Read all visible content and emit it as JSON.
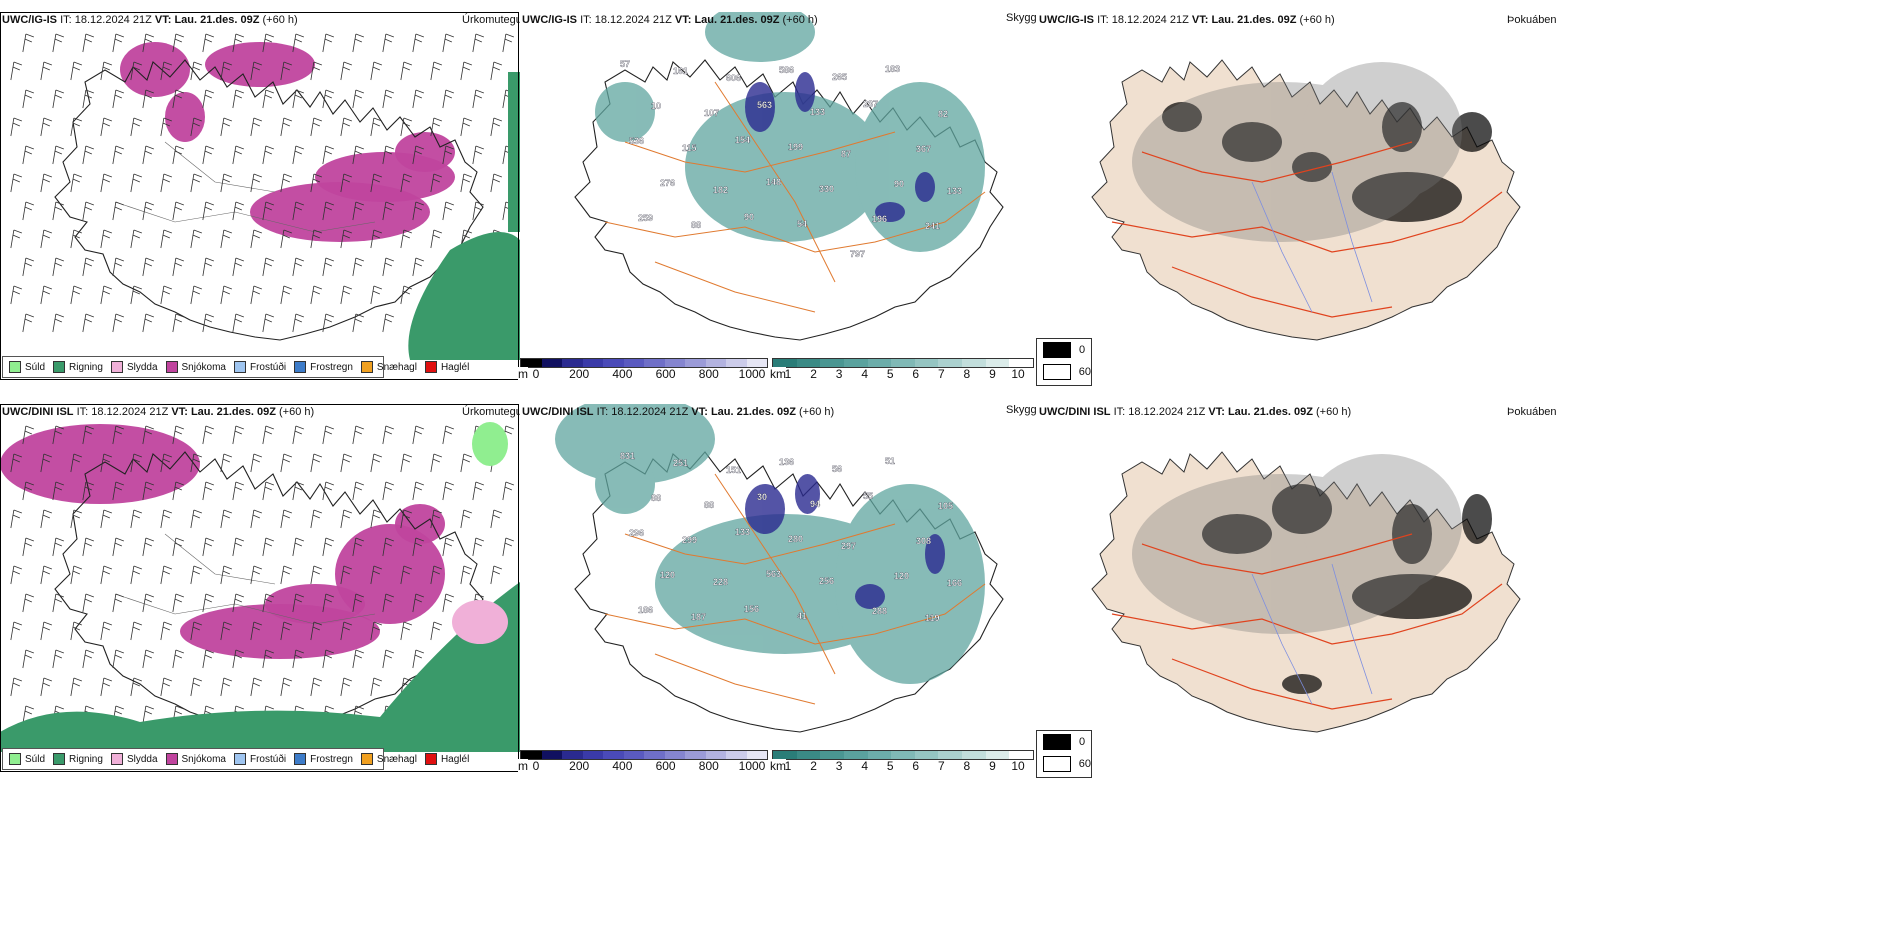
{
  "rows": [
    {
      "id": "igis",
      "model_label": "UWC/IG-IS",
      "it_label": "IT:",
      "it_value": "18.12.2024 21Z",
      "vt_label": "VT:",
      "vt_value": "Lau. 21.des. 09Z",
      "lead": "(+60 h)",
      "panels": {
        "precip_title": "Úrkomutegund",
        "cloud_title": "Skyggni",
        "fog_title": "Þokuábendi"
      }
    },
    {
      "id": "dini",
      "model_label": "UWC/DINI ISL",
      "it_label": "IT:",
      "it_value": "18.12.2024 21Z",
      "vt_label": "VT:",
      "vt_value": "Lau. 21.des. 09Z",
      "lead": "(+60 h)",
      "panels": {
        "precip_title": "Úrkomutegund",
        "cloud_title": "Skyggni",
        "fog_title": "Þokuábendi"
      }
    }
  ],
  "precip_legend": [
    {
      "label": "Súld",
      "color": "#90ee90"
    },
    {
      "label": "Rigning",
      "color": "#3a9a6a"
    },
    {
      "label": "Slydda",
      "color": "#f0b0d8"
    },
    {
      "label": "Snjókoma",
      "color": "#c0449e"
    },
    {
      "label": "Frostúði",
      "color": "#9fc5f0"
    },
    {
      "label": "Frostregn",
      "color": "#3d7cc9"
    },
    {
      "label": "Snæhagl",
      "color": "#f0a020"
    },
    {
      "label": "Haglél",
      "color": "#e01010"
    }
  ],
  "cloudbase_bar": {
    "unit": "m",
    "ticks": [
      "0",
      "200",
      "400",
      "600",
      "800",
      "1000"
    ],
    "colors": [
      "#000000",
      "#101060",
      "#2a2a90",
      "#3a3aa8",
      "#4a4ab8",
      "#5a5ac0",
      "#6f6fc8",
      "#8585d0",
      "#9b9bd8",
      "#b3b3e0",
      "#ccccea",
      "#e6e6f4"
    ]
  },
  "visibility_bar": {
    "unit": "km",
    "ticks": [
      "1",
      "2",
      "3",
      "4",
      "5",
      "6",
      "7",
      "8",
      "9",
      "10"
    ],
    "colors": [
      "#2a7d78",
      "#3a8a85",
      "#4a9692",
      "#5aa29e",
      "#6cadaa",
      "#80b9b6",
      "#95c5c2",
      "#abd1cf",
      "#c2dedc",
      "#dbecea",
      "#ffffff"
    ]
  },
  "fog_legend": [
    {
      "value": "0",
      "color": "#000000"
    },
    {
      "value": "60",
      "color": "#ffffff"
    }
  ],
  "cloud_labels_top": [
    "57",
    "161",
    "606",
    "586",
    "265",
    "183",
    "82",
    "10",
    "107",
    "563",
    "133",
    "237",
    "367",
    "536",
    "115",
    "154",
    "199",
    "87",
    "90",
    "133",
    "276",
    "182",
    "148",
    "330",
    "196",
    "241",
    "259",
    "88",
    "90",
    "54",
    "797"
  ],
  "cloud_labels_bottom": [
    "831",
    "251",
    "151",
    "136",
    "56",
    "51",
    "105",
    "88",
    "88",
    "30",
    "94",
    "55",
    "308",
    "296",
    "299",
    "133",
    "280",
    "297",
    "120",
    "166",
    "120",
    "228",
    "563",
    "256",
    "288",
    "119",
    "186",
    "187",
    "156",
    "41"
  ]
}
